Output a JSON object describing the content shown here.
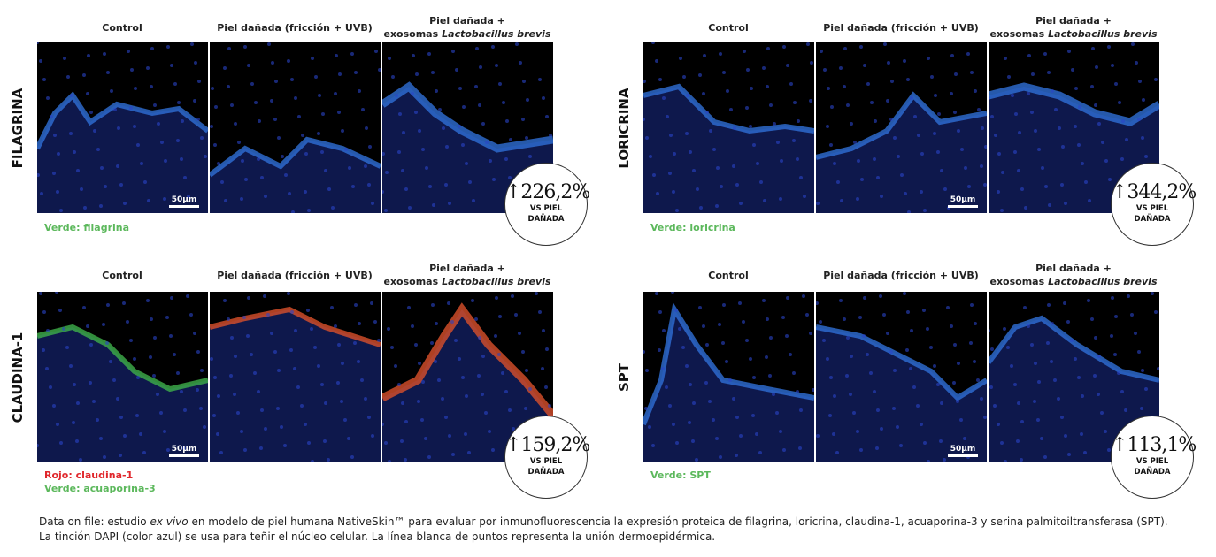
{
  "panels": [
    {
      "marker": "FILAGRINA",
      "columns": [
        {
          "label": "Control"
        },
        {
          "label": "Piel dañada (fricción + UVB)"
        },
        {
          "line1": "Piel dañada +",
          "line2": "exosomas",
          "species": "Lactobacillus brevis"
        }
      ],
      "scale_bar": "50μm",
      "legend": [
        {
          "text": "Verde: filagrina",
          "color": "#5cb85c"
        }
      ],
      "badge": {
        "value": "↑226,2%",
        "caption_line1": "VS PIEL",
        "caption_line2": "DAÑADA"
      }
    },
    {
      "marker": "LORICRINA",
      "columns": [
        {
          "label": "Control"
        },
        {
          "label": "Piel dañada (fricción + UVB)"
        },
        {
          "line1": "Piel dañada +",
          "line2": "exosomas",
          "species": "Lactobacillus brevis"
        }
      ],
      "scale_bar": "50μm",
      "legend": [
        {
          "text": "Verde: loricrina",
          "color": "#5cb85c"
        }
      ],
      "badge": {
        "value": "↑344,2%",
        "caption_line1": "VS PIEL",
        "caption_line2": "DAÑADA"
      }
    },
    {
      "marker": "CLAUDINA-1",
      "columns": [
        {
          "label": "Control"
        },
        {
          "label": "Piel dañada (fricción + UVB)"
        },
        {
          "line1": "Piel dañada +",
          "line2": "exosomas",
          "species": "Lactobacillus brevis"
        }
      ],
      "scale_bar": "50μm",
      "legend": [
        {
          "text": "Rojo: claudina-1",
          "color": "#e0262b"
        },
        {
          "text": "Verde: acuaporina-3",
          "color": "#5cb85c"
        }
      ],
      "badge": {
        "value": "↑159,2%",
        "caption_line1": "VS PIEL",
        "caption_line2": "DAÑADA"
      }
    },
    {
      "marker": "SPT",
      "columns": [
        {
          "label": "Control"
        },
        {
          "label": "Piel dañada (fricción + UVB)"
        },
        {
          "line1": "Piel dañada +",
          "line2": "exosomas",
          "species": "Lactobacillus brevis"
        }
      ],
      "scale_bar": "50μm",
      "legend": [
        {
          "text": "Verde: SPT",
          "color": "#5cb85c"
        }
      ],
      "badge": {
        "value": "↑113,1%",
        "caption_line1": "VS PIEL",
        "caption_line2": "DAÑADA"
      }
    }
  ],
  "footer": {
    "line1_start": "Data on file: estudio",
    "line1_italic": "ex vivo",
    "line1_end": "en modelo de piel humana NativeSkin™ para evaluar por inmunofluorescencia la expresión proteica de filagrina, loricrina, claudina-1, acuaporina-3 y serina palmitoiltransferasa (SPT).",
    "line2": "La tinción DAPI (color azul) se usa para teñir el núcleo celular. La línea blanca de puntos representa la unión dermoepidérmica."
  }
}
